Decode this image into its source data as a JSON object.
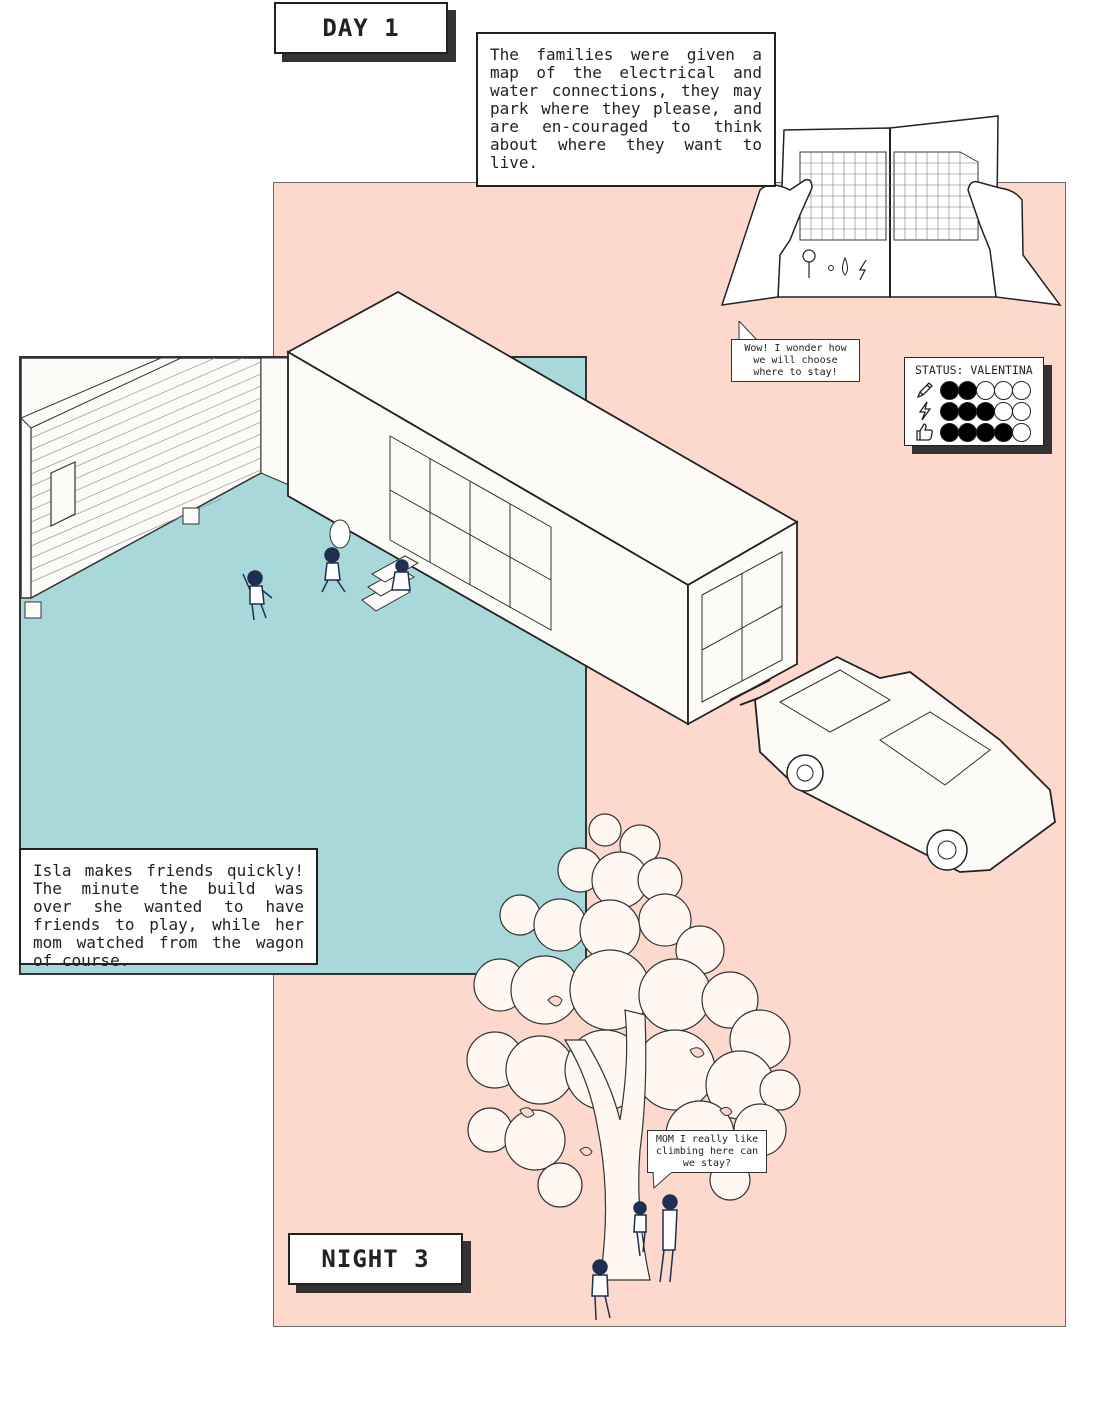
{
  "day_label": "DAY 1",
  "night_label": "NIGHT 3",
  "captions": {
    "top": "The families were given a map of the electrical and water connections, they may park where they please, and are en-couraged to think about where they want to live.",
    "isla": "Isla makes friends quickly! The minute the build was over she wanted to have friends to play, while her mom watched from the wagon of course."
  },
  "bubbles": {
    "wow": "Wow! I wonder how we will choose where to stay!",
    "mom": "MOM I really like climbing here can we stay?"
  },
  "status": {
    "title": "STATUS: VALENTINA",
    "rows": [
      {
        "icon": "pencil-icon",
        "filled": 2,
        "total": 5
      },
      {
        "icon": "lightning-icon",
        "filled": 3,
        "total": 5
      },
      {
        "icon": "thumbs-up-icon",
        "filled": 4,
        "total": 5
      }
    ]
  },
  "colors": {
    "peach": "#fcd9cc",
    "teal": "#a8d8da",
    "tree_fill": "#fff8f2",
    "figure_navy": "#1e2f4f"
  },
  "map_icons": [
    "pin-icon",
    "dot-icon",
    "water-drop-icon",
    "lightning-icon"
  ]
}
